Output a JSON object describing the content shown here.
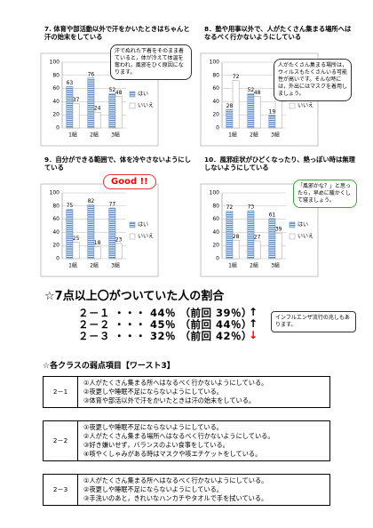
{
  "chart_data": [
    {
      "type": "bar",
      "title": "7. 体育や部活動以外で汗をかいたときはちゃんと汗の始末をしている",
      "categories": [
        "1組",
        "2組",
        "3組"
      ],
      "series": [
        {
          "name": "はい",
          "color": "#4f81bd",
          "values": [
            63,
            76,
            52
          ]
        },
        {
          "name": "いいえ",
          "color": "#ffffff",
          "values": [
            37,
            24,
            48
          ]
        }
      ],
      "ylim": [
        0,
        100
      ],
      "yticks": [
        0,
        20,
        40,
        60,
        80,
        100
      ]
    },
    {
      "type": "bar",
      "title": "8．塾や用事以外で、人がたくさん集まる場所へはなるべく行かないようにしている",
      "categories": [
        "1組",
        "2組",
        "3組"
      ],
      "series": [
        {
          "name": "はい",
          "color": "#4f81bd",
          "values": [
            28,
            52,
            19
          ]
        },
        {
          "name": "いいえ",
          "color": "#ffffff",
          "values": [
            72,
            48,
            81
          ]
        }
      ],
      "ylim": [
        0,
        100
      ],
      "yticks": [
        0,
        20,
        40,
        60,
        80,
        100
      ]
    },
    {
      "type": "bar",
      "title": "9．自分ができる範囲で、体を冷やさないようにしている",
      "categories": [
        "1組",
        "2組",
        "3組"
      ],
      "series": [
        {
          "name": "はい",
          "color": "#4f81bd",
          "values": [
            75,
            82,
            77
          ]
        },
        {
          "name": "いいえ",
          "color": "#ffffff",
          "values": [
            25,
            18,
            23
          ]
        }
      ],
      "ylim": [
        0,
        100
      ],
      "yticks": [
        0,
        20,
        40,
        60,
        80,
        100
      ]
    },
    {
      "type": "bar",
      "title": "10．風邪症状がひどくなったり、熱っぽい時は無理しないようにしている",
      "categories": [
        "1組",
        "2組",
        "3組"
      ],
      "series": [
        {
          "name": "はい",
          "color": "#4f81bd",
          "values": [
            72,
            73,
            61
          ]
        },
        {
          "name": "いいえ",
          "color": "#ffffff",
          "values": [
            28,
            27,
            39
          ]
        }
      ],
      "ylim": [
        0,
        100
      ],
      "yticks": [
        0,
        20,
        40,
        60,
        80,
        100
      ]
    }
  ],
  "callouts": [
    "汗でぬれた下着をそのまま着ていると，体が冷えて体温を奪われ，風邪をひく原因になります。",
    "人がたくさん集まる場所は，ウィルスもたくさんいる可能性が高いです。そんな時には，外出にはマスクを着用しましょう。",
    "「風邪かな？」と思ったら，早めに暖かくして寝ましょう。"
  ],
  "badge": "Good !!",
  "summary": {
    "title": "☆7点以上〇がついていた人の割合",
    "rows": [
      {
        "text": "２－１ ・・・ 44％ （前回 39％）",
        "trend": "up"
      },
      {
        "text": "２－２ ・・・ 45％ （前回 44％）",
        "trend": "up"
      },
      {
        "text": "２－３ ・・・ 32％ （前回 42％）",
        "trend": "down"
      }
    ],
    "note": "インフルエンザ流行の兆しもあります。"
  },
  "weakness": {
    "title": "☆各クラスの弱点項目【ワースト3】",
    "classes": [
      {
        "name": "2－1",
        "items": [
          "①人がたくさん集まる所へはなるべく行かないようにしている。",
          "②夜更しや睡眠不足にならないようにしている。",
          "③体育や部活以外で汗をかいたときは汗の始末をしている。"
        ]
      },
      {
        "name": "2－2",
        "items": [
          "①夜更しや睡眠不足にならないようにしている。",
          "②人がたくさん集まる場所へはなるべく行かないようにしている。",
          "③好き嫌いせず，バランスのよい食事をしている。",
          "④咳やくしゃみがある時はマスクや咳エチケットをしている。"
        ]
      },
      {
        "name": "2－3",
        "items": [
          "①人がたくさん集まる所へはなるべく行かないようにしている。",
          "②夜更しや睡眠不足にならないようにしている。",
          "③手洗いのあと，きれいなハンカチやタオルで手を拭いている。"
        ]
      }
    ]
  }
}
